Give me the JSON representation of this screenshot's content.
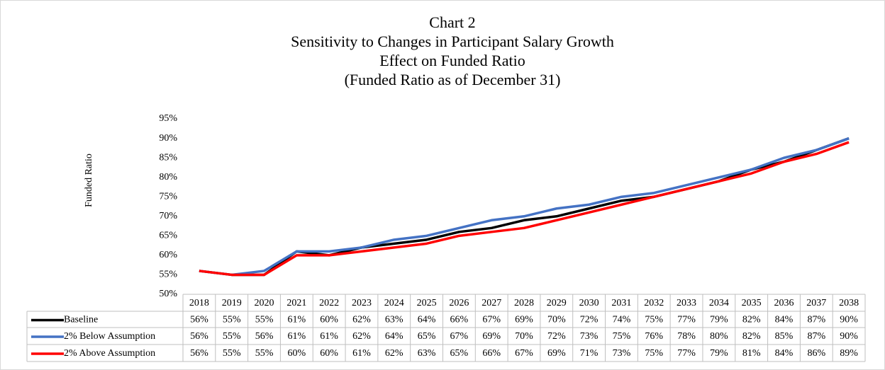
{
  "chart_data": {
    "type": "line",
    "title": [
      "Chart 2",
      "Sensitivity to Changes in Participant Salary Growth",
      "Effect on Funded Ratio",
      "(Funded Ratio as of December 31)"
    ],
    "y_label": "Funded Ratio",
    "categories": [
      "2018",
      "2019",
      "2020",
      "2021",
      "2022",
      "2023",
      "2024",
      "2025",
      "2026",
      "2027",
      "2028",
      "2029",
      "2030",
      "2031",
      "2032",
      "2033",
      "2034",
      "2035",
      "2036",
      "2037",
      "2038"
    ],
    "series": [
      {
        "name": "Baseline",
        "color": "#000000",
        "values": [
          56,
          55,
          55,
          61,
          60,
          62,
          63,
          64,
          66,
          67,
          69,
          70,
          72,
          74,
          75,
          77,
          79,
          82,
          84,
          87,
          90
        ],
        "value_labels": [
          "56%",
          "55%",
          "55%",
          "61%",
          "60%",
          "62%",
          "63%",
          "64%",
          "66%",
          "67%",
          "69%",
          "70%",
          "72%",
          "74%",
          "75%",
          "77%",
          "79%",
          "82%",
          "84%",
          "87%",
          "90%"
        ]
      },
      {
        "name": "2% Below Assumption",
        "color": "#4472c4",
        "values": [
          56,
          55,
          56,
          61,
          61,
          62,
          64,
          65,
          67,
          69,
          70,
          72,
          73,
          75,
          76,
          78,
          80,
          82,
          85,
          87,
          90
        ],
        "value_labels": [
          "56%",
          "55%",
          "56%",
          "61%",
          "61%",
          "62%",
          "64%",
          "65%",
          "67%",
          "69%",
          "70%",
          "72%",
          "73%",
          "75%",
          "76%",
          "78%",
          "80%",
          "82%",
          "85%",
          "87%",
          "90%"
        ]
      },
      {
        "name": "2% Above Assumption",
        "color": "#ff0000",
        "values": [
          56,
          55,
          55,
          60,
          60,
          61,
          62,
          63,
          65,
          66,
          67,
          69,
          71,
          73,
          75,
          77,
          79,
          81,
          84,
          86,
          89
        ],
        "value_labels": [
          "56%",
          "55%",
          "55%",
          "60%",
          "60%",
          "61%",
          "62%",
          "63%",
          "65%",
          "66%",
          "67%",
          "69%",
          "71%",
          "73%",
          "75%",
          "77%",
          "79%",
          "81%",
          "84%",
          "86%",
          "89%"
        ]
      }
    ],
    "ylim": [
      50,
      95
    ],
    "yticks": [
      {
        "value": 50,
        "label": "50%"
      },
      {
        "value": 55,
        "label": "55%"
      },
      {
        "value": 60,
        "label": "60%"
      },
      {
        "value": 65,
        "label": "65%"
      },
      {
        "value": 70,
        "label": "70%"
      },
      {
        "value": 75,
        "label": "75%"
      },
      {
        "value": 80,
        "label": "80%"
      },
      {
        "value": 85,
        "label": "85%"
      },
      {
        "value": 90,
        "label": "90%"
      },
      {
        "value": 95,
        "label": "95%"
      }
    ],
    "grid": false
  }
}
